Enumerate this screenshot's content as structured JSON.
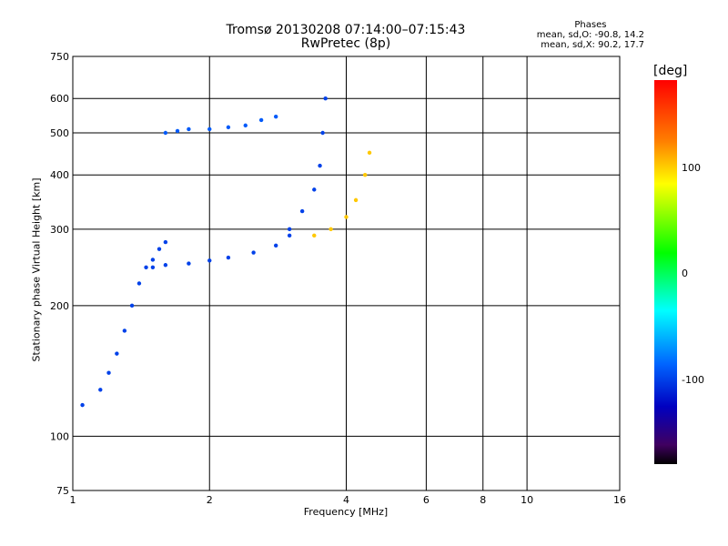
{
  "header": {
    "title": "Tromsø 20130208 07:14:00–07:15:43",
    "subtitle": "RwPretec (8p)"
  },
  "stats": {
    "heading": "Phases",
    "line_o": "mean, sd,O: -90.8, 14.2",
    "line_x": "mean, sd,X: 90.2, 17.7"
  },
  "colorbar": {
    "title": "[deg]",
    "ticks": [
      "100",
      "0",
      "-100"
    ],
    "range": [
      -180,
      180
    ]
  },
  "chart_data": {
    "type": "scatter",
    "xlabel": "Frequency [MHz]",
    "ylabel": "Stationary phase Virtual Height [km]",
    "xscale": "log",
    "yscale": "log",
    "xlim": [
      1,
      16
    ],
    "ylim": [
      75,
      750
    ],
    "x_ticks": [
      "1",
      "2",
      "4",
      "6",
      "8",
      "10",
      "16"
    ],
    "y_ticks": [
      "75",
      "100",
      "200",
      "300",
      "400",
      "500",
      "600",
      "750"
    ],
    "grid": true,
    "traces": [
      {
        "name": "",
        "phase": -100,
        "x": [
          1.05,
          1.15,
          1.2,
          1.25,
          1.3,
          1.35,
          1.4,
          1.45,
          1.5,
          1.55,
          1.6
        ],
        "y": [
          118,
          128,
          140,
          155,
          175,
          200,
          225,
          245,
          255,
          270,
          280
        ]
      },
      {
        "name": "",
        "phase": -100,
        "x": [
          1.5,
          1.6,
          1.8,
          2.0,
          2.2,
          2.5,
          2.8,
          3.0
        ],
        "y": [
          245,
          248,
          250,
          254,
          258,
          265,
          275,
          290
        ]
      },
      {
        "name": "",
        "phase": -90,
        "x": [
          1.6,
          1.7,
          1.8,
          2.0,
          2.2,
          2.4,
          2.6,
          2.8
        ],
        "y": [
          500,
          505,
          510,
          510,
          515,
          520,
          535,
          545
        ]
      },
      {
        "name": "",
        "phase": -100,
        "x": [
          3.0,
          3.2,
          3.4,
          3.5,
          3.55,
          3.6
        ],
        "y": [
          300,
          330,
          370,
          420,
          500,
          600
        ]
      },
      {
        "name": "",
        "phase": 100,
        "x": [
          3.4,
          3.7,
          4.0,
          4.2,
          4.4,
          4.5
        ],
        "y": [
          290,
          300,
          320,
          350,
          400,
          450
        ]
      }
    ]
  }
}
